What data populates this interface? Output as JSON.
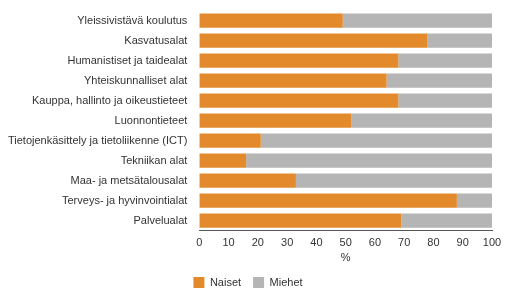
{
  "chart_data": {
    "type": "bar",
    "orientation": "horizontal",
    "stacked": true,
    "categories": [
      "Yleissivistävä koulutus",
      "Kasvatusalat",
      "Humanistiset ja taidealat",
      "Yhteiskunnalliset alat",
      "Kauppa, hallinto ja oikeustieteet",
      "Luonnontieteet",
      "Tietojenkäsittely ja tietoliikenne (ICT)",
      "Tekniikan alat",
      "Maa- ja metsätalousalat",
      "Terveys- ja hyvinvointialat",
      "Palvelualat"
    ],
    "series": [
      {
        "name": "Naiset",
        "color": "#e38b2c",
        "values": [
          49,
          78,
          68,
          64,
          68,
          52,
          21,
          16,
          33,
          88,
          69
        ]
      },
      {
        "name": "Miehet",
        "color": "#b5b5b5",
        "values": [
          51,
          22,
          32,
          36,
          32,
          48,
          79,
          84,
          67,
          12,
          31
        ]
      }
    ],
    "x_label": "%",
    "xlim": [
      0,
      100
    ],
    "xticks": [
      0,
      10,
      20,
      30,
      40,
      50,
      60,
      70,
      80,
      90,
      100
    ],
    "grid": false,
    "legend": "bottom"
  }
}
